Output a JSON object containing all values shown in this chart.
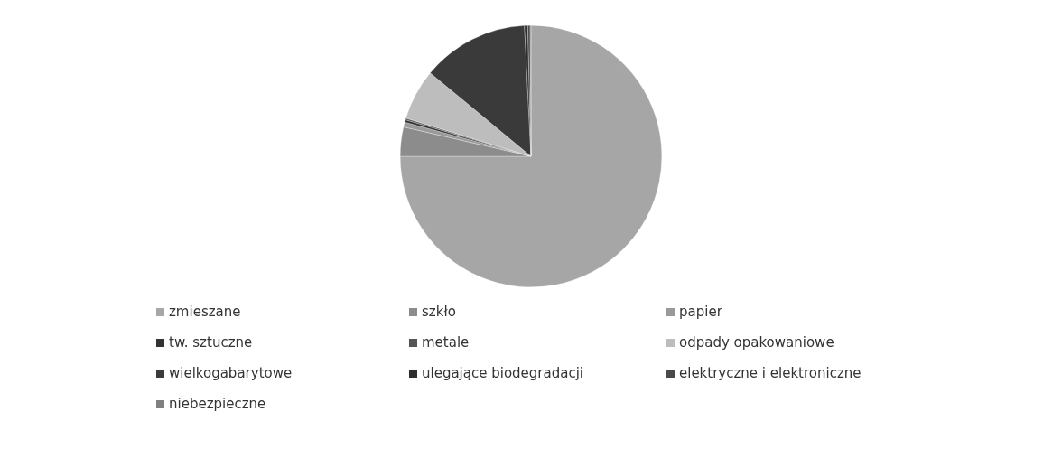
{
  "chart_data": {
    "type": "pie",
    "categories": [
      "zmieszane",
      "szkło",
      "papier",
      "tw. sztuczne",
      "metale",
      "odpady opakowaniowe",
      "wielkogabarytowe",
      "ulegające biodegradacji",
      "elektryczne i elektroniczne",
      "niebezpieczne"
    ],
    "values": [
      75,
      3.6,
      0.6,
      0.3,
      0.2,
      6.3,
      13.2,
      0.4,
      0.3,
      0.1
    ],
    "colors": [
      "#a6a6a6",
      "#8c8c8c",
      "#9a9a9a",
      "#333333",
      "#555555",
      "#bdbdbd",
      "#3a3a3a",
      "#2e2e2e",
      "#4a4a4a",
      "#808080"
    ],
    "legend": "bottom"
  }
}
